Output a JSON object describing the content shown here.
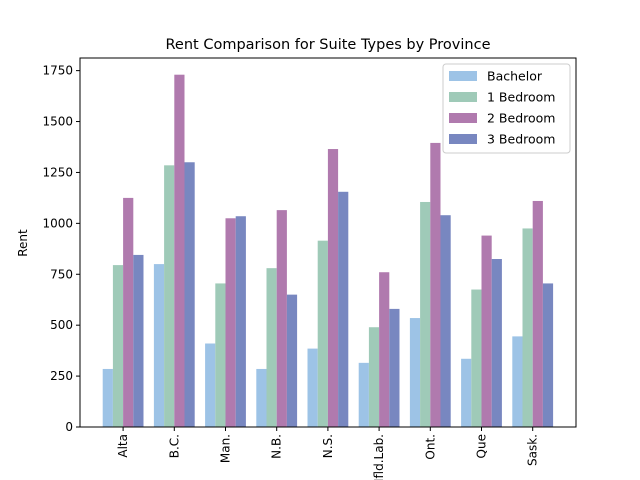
{
  "chart_data": {
    "type": "bar",
    "title": "Rent Comparison for Suite Types by Province",
    "xlabel": "",
    "ylabel": "Rent",
    "categories": [
      "Alta",
      "B.C.",
      "Man.",
      "N.B.",
      "N.S.",
      "Nfld.Lab.",
      "Ont.",
      "Que",
      "Sask."
    ],
    "series": [
      {
        "name": "Bachelor",
        "color": "#9dc3e6",
        "values": [
          285,
          800,
          410,
          285,
          385,
          315,
          535,
          335,
          445
        ]
      },
      {
        "name": "1 Bedroom",
        "color": "#9fcab8",
        "values": [
          795,
          1285,
          705,
          780,
          915,
          490,
          1105,
          675,
          975
        ]
      },
      {
        "name": "2 Bedroom",
        "color": "#b07aae",
        "values": [
          1125,
          1730,
          1025,
          1065,
          1365,
          760,
          1395,
          940,
          1110
        ]
      },
      {
        "name": "3 Bedroom",
        "color": "#7887c0",
        "values": [
          845,
          1300,
          1035,
          650,
          1155,
          580,
          1040,
          825,
          705
        ]
      }
    ],
    "ylim": [
      0,
      1812
    ],
    "yticks": [
      0,
      250,
      500,
      750,
      1000,
      1250,
      1500,
      1750
    ],
    "legend": "top-right",
    "grid": false
  }
}
